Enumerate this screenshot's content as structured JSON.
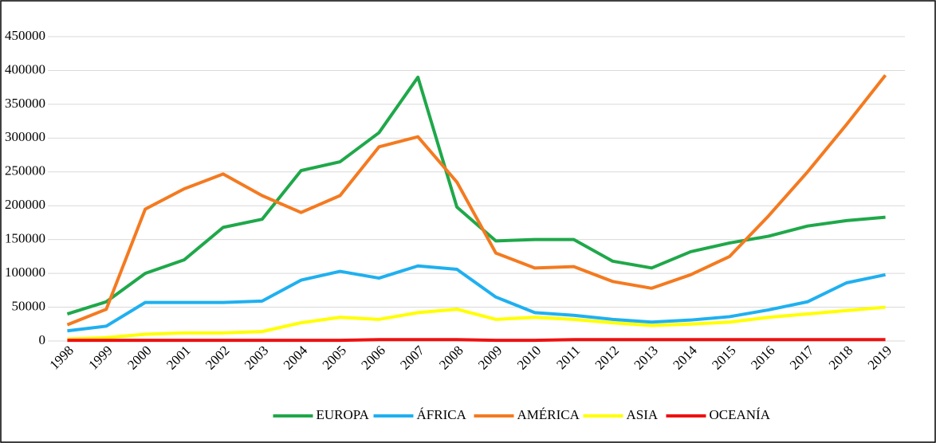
{
  "chart_data": {
    "type": "line",
    "categories": [
      "1998",
      "1999",
      "2000",
      "2001",
      "2002",
      "2003",
      "2004",
      "2005",
      "2006",
      "2007",
      "2008",
      "2009",
      "2010",
      "2011",
      "2012",
      "2013",
      "2014",
      "2015",
      "2016",
      "2017",
      "2018",
      "2019"
    ],
    "series": [
      {
        "name": "EUROPA",
        "color": "#1fa84a",
        "values": [
          40000,
          58000,
          100000,
          120000,
          168000,
          180000,
          252000,
          265000,
          308000,
          390000,
          198000,
          148000,
          150000,
          150000,
          118000,
          108000,
          132000,
          145000,
          155000,
          170000,
          178000,
          183000
        ]
      },
      {
        "name": "ÁFRICA",
        "color": "#1fb0f0",
        "values": [
          15000,
          22000,
          57000,
          57000,
          57000,
          59000,
          90000,
          103000,
          93000,
          111000,
          106000,
          65000,
          42000,
          38000,
          32000,
          28000,
          31000,
          36000,
          46000,
          58000,
          86000,
          98000
        ]
      },
      {
        "name": "AMÉRICA",
        "color": "#f47a20",
        "values": [
          24000,
          47000,
          195000,
          225000,
          247000,
          215000,
          190000,
          215000,
          287000,
          302000,
          235000,
          130000,
          108000,
          110000,
          88000,
          78000,
          98000,
          125000,
          185000,
          250000,
          320000,
          393000
        ]
      },
      {
        "name": "ASIA",
        "color": "#ffff00",
        "values": [
          3000,
          5000,
          10000,
          12000,
          12000,
          14000,
          27000,
          35000,
          32000,
          42000,
          47000,
          32000,
          35000,
          32000,
          27000,
          23000,
          25000,
          28000,
          35000,
          40000,
          45000,
          50000
        ]
      },
      {
        "name": "OCEANÍA",
        "color": "#ee1111",
        "values": [
          1000,
          1000,
          1000,
          1000,
          1000,
          1000,
          1000,
          1000,
          2000,
          2000,
          2000,
          1000,
          1000,
          2000,
          2000,
          2000,
          2000,
          2000,
          2000,
          2000,
          2000,
          2000
        ]
      }
    ],
    "ylim": [
      0,
      450000
    ],
    "yticks": [
      0,
      50000,
      100000,
      150000,
      200000,
      250000,
      300000,
      350000,
      400000,
      450000
    ],
    "grid": true,
    "legend": "bottom"
  }
}
